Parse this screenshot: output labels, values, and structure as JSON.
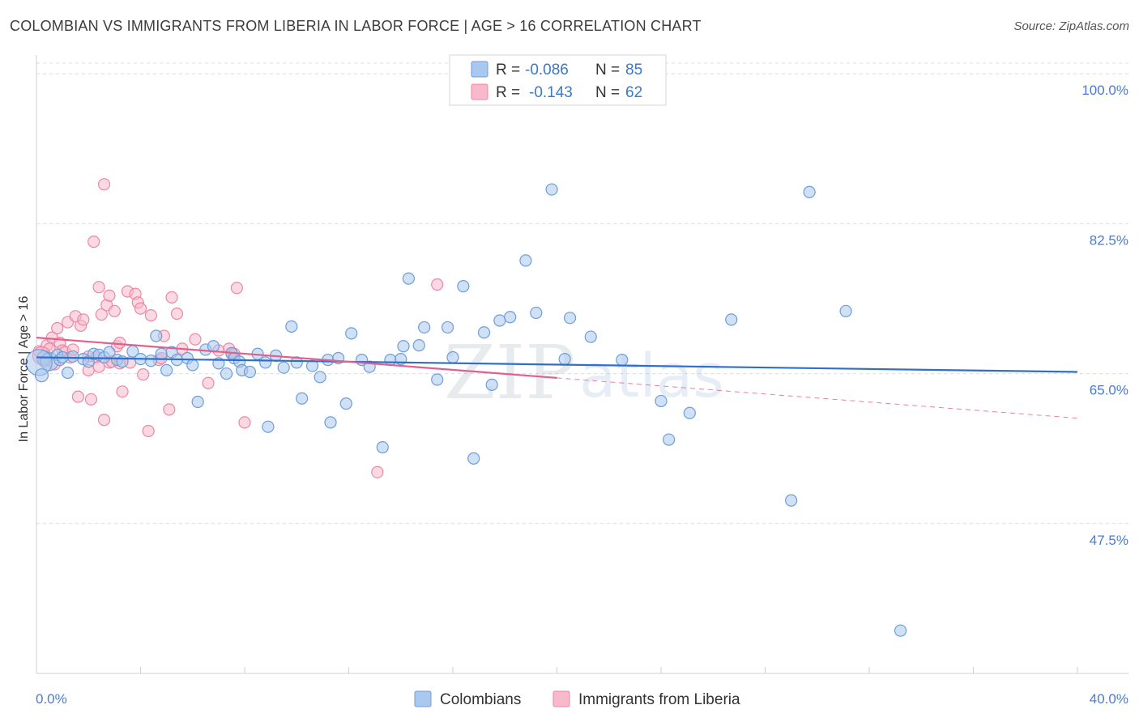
{
  "title": "COLOMBIAN VS IMMIGRANTS FROM LIBERIA IN LABOR FORCE | AGE > 16 CORRELATION CHART",
  "source": "Source: ZipAtlas.com",
  "legend_top": {
    "r_label": "R =",
    "n_label": "N =",
    "rows": [
      {
        "r": "-0.086",
        "n": "85"
      },
      {
        "r": "-0.143",
        "n": "62"
      }
    ]
  },
  "colors": {
    "colombians_fill": "#aac8ef",
    "colombians_stroke": "#6e9ed8",
    "colombians_line": "#2f6fc8",
    "liberia_fill": "#f7b9cb",
    "liberia_stroke": "#eb88a6",
    "liberia_line": "#e0608e",
    "axis_text": "#4a7cc9"
  },
  "chart_data": {
    "type": "scatter",
    "ylabel": "In Labor Force | Age > 16",
    "xlim": [
      0,
      40
    ],
    "ylim": [
      30,
      102
    ],
    "x_tick_labels": [
      "0.0%",
      "40.0%"
    ],
    "y_ticks": [
      47.5,
      65.0,
      82.5,
      100.0
    ],
    "y_tick_labels": [
      "47.5%",
      "65.0%",
      "82.5%",
      "100.0%"
    ],
    "grid": "horizontal dashed",
    "legend_position": "bottom-center",
    "series": [
      {
        "name": "Colombians",
        "r": -0.086,
        "n": 85,
        "trend": {
          "x0": 0,
          "y0": 66.9,
          "x1": 40,
          "y1": 65.2
        },
        "points": [
          [
            0.3,
            66.8
          ],
          [
            0.5,
            66.4
          ],
          [
            0.8,
            67.2
          ],
          [
            0.9,
            66.6
          ],
          [
            1.2,
            65.1
          ],
          [
            1.4,
            67.0
          ],
          [
            1.8,
            66.7
          ],
          [
            2.0,
            66.4
          ],
          [
            2.2,
            67.3
          ],
          [
            2.4,
            67.2
          ],
          [
            2.6,
            66.9
          ],
          [
            2.8,
            67.5
          ],
          [
            3.1,
            66.6
          ],
          [
            3.3,
            66.4
          ],
          [
            3.7,
            67.6
          ],
          [
            4.0,
            66.7
          ],
          [
            4.4,
            66.5
          ],
          [
            4.6,
            69.4
          ],
          [
            4.8,
            67.3
          ],
          [
            5.0,
            65.4
          ],
          [
            5.2,
            67.5
          ],
          [
            5.4,
            66.6
          ],
          [
            5.8,
            66.8
          ],
          [
            6.0,
            66.0
          ],
          [
            6.2,
            61.7
          ],
          [
            6.5,
            67.8
          ],
          [
            6.8,
            68.2
          ],
          [
            7.0,
            66.2
          ],
          [
            7.3,
            65.0
          ],
          [
            7.5,
            67.4
          ],
          [
            7.6,
            66.8
          ],
          [
            7.8,
            66.4
          ],
          [
            7.9,
            65.4
          ],
          [
            8.2,
            65.2
          ],
          [
            8.5,
            67.3
          ],
          [
            8.8,
            66.3
          ],
          [
            8.9,
            58.8
          ],
          [
            9.2,
            67.1
          ],
          [
            9.5,
            65.7
          ],
          [
            9.8,
            70.5
          ],
          [
            10.0,
            66.3
          ],
          [
            10.2,
            62.1
          ],
          [
            10.6,
            65.9
          ],
          [
            10.9,
            64.6
          ],
          [
            11.2,
            66.6
          ],
          [
            11.3,
            59.3
          ],
          [
            11.6,
            66.8
          ],
          [
            11.9,
            61.5
          ],
          [
            12.1,
            69.7
          ],
          [
            12.5,
            66.6
          ],
          [
            12.8,
            65.8
          ],
          [
            13.3,
            56.4
          ],
          [
            13.6,
            66.6
          ],
          [
            14.0,
            66.7
          ],
          [
            14.1,
            68.2
          ],
          [
            14.3,
            76.1
          ],
          [
            14.7,
            68.3
          ],
          [
            14.9,
            70.4
          ],
          [
            15.4,
            64.3
          ],
          [
            15.8,
            70.4
          ],
          [
            16.0,
            66.9
          ],
          [
            16.4,
            75.2
          ],
          [
            16.8,
            55.1
          ],
          [
            17.2,
            69.8
          ],
          [
            17.5,
            63.7
          ],
          [
            17.8,
            71.2
          ],
          [
            18.2,
            71.6
          ],
          [
            18.8,
            78.2
          ],
          [
            19.2,
            72.1
          ],
          [
            19.8,
            86.5
          ],
          [
            20.3,
            66.7
          ],
          [
            20.5,
            71.5
          ],
          [
            21.3,
            69.3
          ],
          [
            22.5,
            66.6
          ],
          [
            24.0,
            61.8
          ],
          [
            24.3,
            57.3
          ],
          [
            25.1,
            60.4
          ],
          [
            26.7,
            71.3
          ],
          [
            29.0,
            50.2
          ],
          [
            29.7,
            86.2
          ],
          [
            31.1,
            72.3
          ],
          [
            33.2,
            35.0
          ],
          [
            0.1,
            66.3
          ],
          [
            0.2,
            64.8
          ],
          [
            1.0,
            66.9
          ]
        ],
        "sizes": [
          18,
          22,
          14,
          14,
          14,
          14,
          14,
          14,
          14,
          14,
          14,
          14,
          14,
          14,
          14,
          14,
          14,
          14,
          14,
          14,
          14,
          14,
          14,
          14,
          14,
          14,
          14,
          14,
          14,
          14,
          14,
          14,
          14,
          14,
          14,
          14,
          14,
          14,
          14,
          14,
          14,
          14,
          14,
          14,
          14,
          14,
          14,
          14,
          14,
          14,
          14,
          14,
          14,
          14,
          14,
          14,
          14,
          14,
          14,
          14,
          14,
          14,
          14,
          14,
          14,
          14,
          14,
          14,
          14,
          14,
          14,
          14,
          14,
          14,
          14,
          14,
          14,
          14,
          14,
          14,
          14,
          14,
          32,
          16,
          14
        ]
      },
      {
        "name": "Immigrants from Liberia",
        "r": -0.143,
        "n": 62,
        "trend": {
          "x0": 0,
          "y0": 69.2,
          "x1": 20,
          "y1": 64.5
        },
        "trend_dashed": {
          "x0": 20,
          "y0": 64.5,
          "x1": 40,
          "y1": 59.8
        },
        "points": [
          [
            0.1,
            67.6
          ],
          [
            0.3,
            66.4
          ],
          [
            0.4,
            68.3
          ],
          [
            0.5,
            67.9
          ],
          [
            0.6,
            69.2
          ],
          [
            0.7,
            66.1
          ],
          [
            0.8,
            70.3
          ],
          [
            0.9,
            68.6
          ],
          [
            1.0,
            67.7
          ],
          [
            1.1,
            67.5
          ],
          [
            1.2,
            71.0
          ],
          [
            1.3,
            66.9
          ],
          [
            1.4,
            67.8
          ],
          [
            1.5,
            71.7
          ],
          [
            1.6,
            62.3
          ],
          [
            1.7,
            70.6
          ],
          [
            1.8,
            71.3
          ],
          [
            2.0,
            65.4
          ],
          [
            2.0,
            67.0
          ],
          [
            2.1,
            62.0
          ],
          [
            2.2,
            80.4
          ],
          [
            2.3,
            66.9
          ],
          [
            2.4,
            65.8
          ],
          [
            2.4,
            75.1
          ],
          [
            2.5,
            71.9
          ],
          [
            2.6,
            59.6
          ],
          [
            2.6,
            87.1
          ],
          [
            2.7,
            73.0
          ],
          [
            2.8,
            74.1
          ],
          [
            2.8,
            66.3
          ],
          [
            2.9,
            66.4
          ],
          [
            3.0,
            72.3
          ],
          [
            3.1,
            68.2
          ],
          [
            3.2,
            68.6
          ],
          [
            3.2,
            66.2
          ],
          [
            3.3,
            62.9
          ],
          [
            3.5,
            74.6
          ],
          [
            3.6,
            66.3
          ],
          [
            3.8,
            74.3
          ],
          [
            3.9,
            73.3
          ],
          [
            4.0,
            72.6
          ],
          [
            4.1,
            64.9
          ],
          [
            4.3,
            58.3
          ],
          [
            4.4,
            71.8
          ],
          [
            4.7,
            66.6
          ],
          [
            4.8,
            66.8
          ],
          [
            4.9,
            69.4
          ],
          [
            5.1,
            60.8
          ],
          [
            5.2,
            73.9
          ],
          [
            5.4,
            72.0
          ],
          [
            5.6,
            67.9
          ],
          [
            6.1,
            69.0
          ],
          [
            6.6,
            63.9
          ],
          [
            7.0,
            67.7
          ],
          [
            7.4,
            67.9
          ],
          [
            7.5,
            67.3
          ],
          [
            7.6,
            67.3
          ],
          [
            7.7,
            75.0
          ],
          [
            8.0,
            59.3
          ],
          [
            13.1,
            53.5
          ],
          [
            15.4,
            75.4
          ],
          [
            0.2,
            67.1
          ]
        ],
        "sizes": [
          14,
          14,
          14,
          14,
          14,
          14,
          14,
          14,
          14,
          14,
          14,
          14,
          14,
          14,
          14,
          14,
          14,
          14,
          14,
          14,
          14,
          14,
          14,
          14,
          14,
          14,
          14,
          14,
          14,
          14,
          14,
          14,
          14,
          14,
          14,
          14,
          14,
          14,
          14,
          14,
          14,
          14,
          14,
          14,
          14,
          14,
          14,
          14,
          14,
          14,
          14,
          14,
          14,
          14,
          14,
          14,
          14,
          14,
          14,
          14,
          14,
          22
        ]
      }
    ]
  }
}
